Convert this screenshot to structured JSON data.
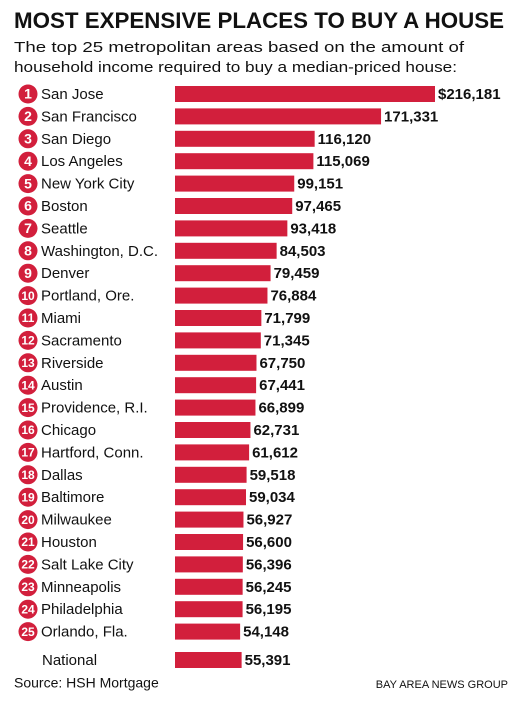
{
  "chart_data": {
    "type": "bar",
    "title": "MOST EXPENSIVE PLACES TO BUY A HOUSE",
    "subtitle": [
      "The top 25 metropolitan areas based on the amount of",
      "household income required to buy a median-priced house:"
    ],
    "categories": [
      "San Jose",
      "San Francisco",
      "San Diego",
      "Los Angeles",
      "New York City",
      "Boston",
      "Seattle",
      "Washington, D.C.",
      "Denver",
      "Portland, Ore.",
      "Miami",
      "Sacramento",
      "Riverside",
      "Austin",
      "Providence, R.I.",
      "Chicago",
      "Hartford, Conn.",
      "Dallas",
      "Baltimore",
      "Milwaukee",
      "Houston",
      "Salt Lake City",
      "Minneapolis",
      "Philadelphia",
      "Orlando, Fla.",
      "National"
    ],
    "ranks": [
      1,
      2,
      3,
      4,
      5,
      6,
      7,
      8,
      9,
      10,
      11,
      12,
      13,
      14,
      15,
      16,
      17,
      18,
      19,
      20,
      21,
      22,
      23,
      24,
      25,
      null
    ],
    "values": [
      216181,
      171331,
      116120,
      115069,
      99151,
      97465,
      93418,
      84503,
      79459,
      76884,
      71799,
      71345,
      67750,
      67441,
      66899,
      62731,
      61612,
      59518,
      59034,
      56927,
      56600,
      56396,
      56245,
      56195,
      54148,
      55391
    ],
    "value_labels": [
      "$216,181",
      "171,331",
      "116,120",
      "115,069",
      "99,151",
      "97,465",
      "93,418",
      "84,503",
      "79,459",
      "76,884",
      "71,799",
      "71,345",
      "67,750",
      "67,441",
      "66,899",
      "62,731",
      "61,612",
      "59,518",
      "59,034",
      "56,927",
      "56,600",
      "56,396",
      "56,245",
      "56,195",
      "54,148",
      "55,391"
    ],
    "color": "#d21f3c",
    "source": "Source: HSH Mortgage",
    "credit": "BAY AREA NEWS GROUP"
  }
}
